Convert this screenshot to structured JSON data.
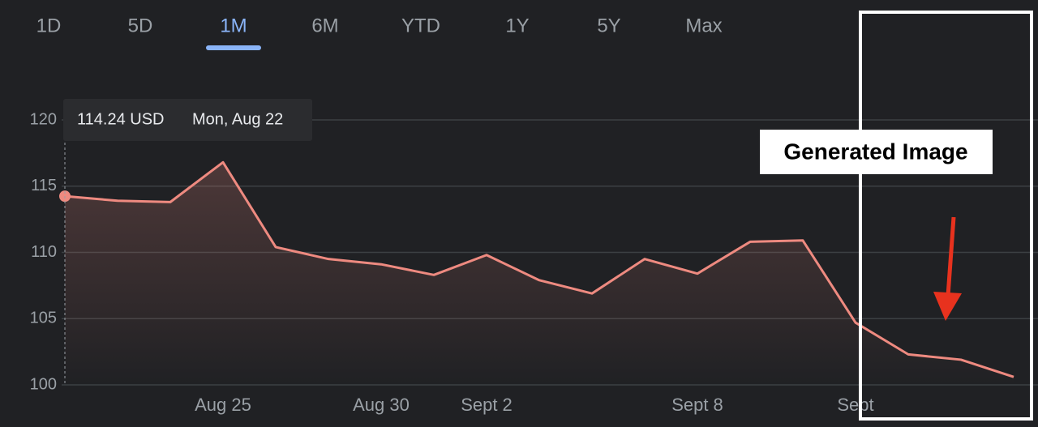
{
  "tabs": [
    "1D",
    "5D",
    "1M",
    "6M",
    "YTD",
    "1Y",
    "5Y",
    "Max"
  ],
  "active_tab": 2,
  "tooltip": {
    "price": "114.24 USD",
    "date": "Mon, Aug 22"
  },
  "annotation": "Generated Image",
  "chart_data": {
    "type": "area",
    "categories": [
      null,
      null,
      null,
      "Aug 25",
      null,
      null,
      "Aug 30",
      null,
      "Sept 2",
      null,
      null,
      null,
      "Sept 8",
      null,
      null,
      "Sept",
      null,
      null,
      null
    ],
    "series": [
      {
        "color": "#ee8a80",
        "values": [
          114.24,
          113.9,
          113.8,
          116.8,
          110.4,
          109.5,
          109.1,
          108.3,
          109.8,
          107.9,
          106.9,
          109.5,
          108.4,
          110.8,
          110.9,
          104.7,
          102.3,
          101.9,
          100.6
        ]
      }
    ],
    "ylim": [
      100,
      120
    ],
    "yticks": [
      100,
      105,
      110,
      115,
      120
    ],
    "grid": true
  }
}
